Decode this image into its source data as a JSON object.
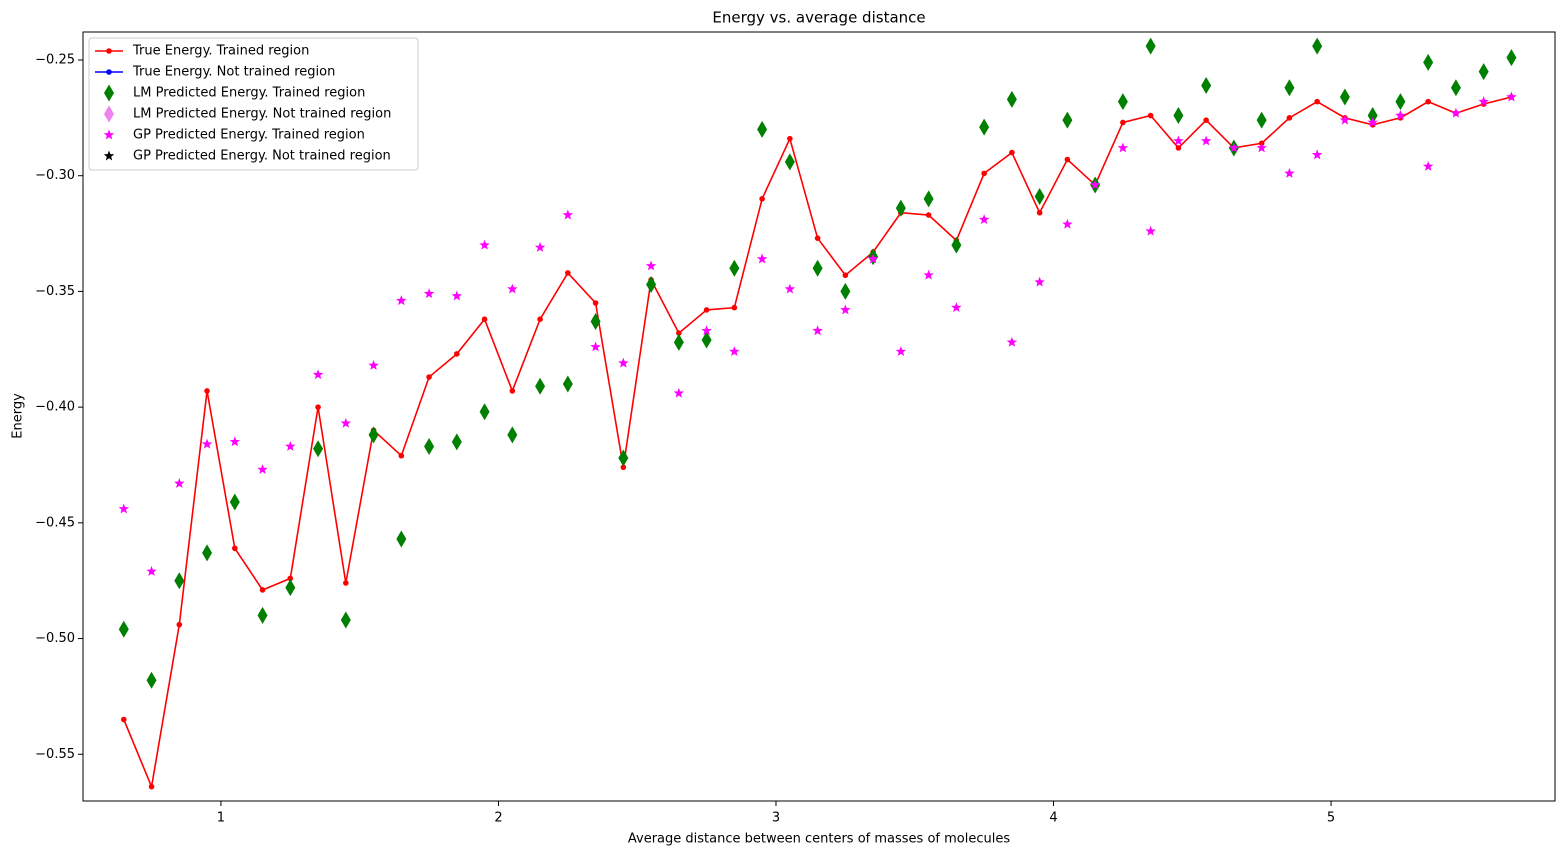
{
  "chart_data": {
    "type": "line-scatter",
    "title": "Energy vs. average distance",
    "x_label": "Average distance between centers of masses of molecules",
    "y_label": "Energy",
    "xlim": [
      0.503,
      5.807
    ],
    "ylim": [
      -0.5702,
      -0.2379
    ],
    "xticks": [
      1,
      2,
      3,
      4,
      5
    ],
    "yticks": [
      {
        "value": -0.55,
        "label": "−0.55"
      },
      {
        "value": -0.5,
        "label": "−0.50"
      },
      {
        "value": -0.45,
        "label": "−0.45"
      },
      {
        "value": -0.4,
        "label": "−0.40"
      },
      {
        "value": -0.35,
        "label": "−0.35"
      },
      {
        "value": -0.3,
        "label": "−0.30"
      },
      {
        "value": -0.25,
        "label": "−0.25"
      }
    ],
    "legend": "upper left",
    "x": [
      0.65,
      0.75,
      0.85,
      0.95,
      1.05,
      1.15,
      1.25,
      1.35,
      1.45,
      1.55,
      1.65,
      1.75,
      1.85,
      1.95,
      2.05,
      2.15,
      2.25,
      2.35,
      2.45,
      2.55,
      2.65,
      2.75,
      2.85,
      2.95,
      3.05,
      3.15,
      3.25,
      3.35,
      3.45,
      3.55,
      3.65,
      3.75,
      3.85,
      3.95,
      4.05,
      4.15,
      4.25,
      4.35,
      4.45,
      4.55,
      4.65,
      4.75,
      4.85,
      4.95,
      5.05,
      5.15,
      5.25,
      5.35,
      5.45,
      5.55,
      5.65
    ],
    "series": [
      {
        "name": "True Energy. Trained region",
        "color": "#ff0000",
        "marker": "line-dot",
        "values": [
          -0.535,
          -0.564,
          -0.494,
          -0.393,
          -0.461,
          -0.479,
          -0.474,
          -0.4,
          -0.476,
          -0.41,
          -0.421,
          -0.387,
          -0.377,
          -0.362,
          -0.393,
          -0.362,
          -0.342,
          -0.355,
          -0.426,
          -0.345,
          -0.368,
          -0.358,
          -0.357,
          -0.31,
          -0.284,
          -0.327,
          -0.343,
          -0.333,
          -0.316,
          -0.317,
          -0.328,
          -0.299,
          -0.29,
          -0.316,
          -0.293,
          -0.304,
          -0.277,
          -0.274,
          -0.288,
          -0.276,
          -0.288,
          -0.286,
          -0.275,
          -0.268,
          -0.275,
          -0.278,
          -0.275,
          -0.268,
          -0.273,
          -0.269,
          -0.266
        ]
      },
      {
        "name": "True Energy. Not trained region",
        "color": "#0000ff",
        "marker": "line-dot",
        "x": [],
        "values": []
      },
      {
        "name": "LM Predicted Energy. Trained region",
        "color": "#008000",
        "marker": "diamond",
        "values": [
          -0.496,
          -0.518,
          -0.475,
          -0.463,
          -0.441,
          -0.49,
          -0.478,
          -0.418,
          -0.492,
          -0.412,
          -0.457,
          -0.417,
          -0.415,
          -0.402,
          -0.412,
          -0.391,
          -0.39,
          -0.363,
          -0.422,
          -0.347,
          -0.372,
          -0.371,
          -0.34,
          -0.28,
          -0.294,
          -0.34,
          -0.35,
          -0.335,
          -0.314,
          -0.31,
          -0.33,
          -0.279,
          -0.267,
          -0.309,
          -0.276,
          -0.304,
          -0.268,
          -0.244,
          -0.274,
          -0.261,
          -0.288,
          -0.276,
          -0.262,
          -0.244,
          -0.266,
          -0.274,
          -0.268,
          -0.251,
          -0.262,
          -0.255,
          -0.249
        ]
      },
      {
        "name": "LM Predicted Energy. Not trained region",
        "color": "#ee82ee",
        "marker": "diamond",
        "x": [],
        "values": []
      },
      {
        "name": "GP Predicted Energy. Trained region",
        "color": "#ff00ff",
        "marker": "star",
        "values": [
          -0.444,
          -0.471,
          -0.433,
          -0.416,
          -0.415,
          -0.427,
          -0.417,
          -0.386,
          -0.407,
          -0.382,
          -0.354,
          -0.351,
          -0.352,
          -0.33,
          -0.349,
          -0.331,
          -0.317,
          -0.374,
          -0.381,
          -0.339,
          -0.394,
          -0.367,
          -0.376,
          -0.336,
          -0.349,
          -0.367,
          -0.358,
          -0.336,
          -0.376,
          -0.343,
          -0.357,
          -0.319,
          -0.372,
          -0.346,
          -0.321,
          -0.304,
          -0.288,
          -0.324,
          -0.285,
          -0.285,
          -0.288,
          -0.288,
          -0.299,
          -0.291,
          -0.276,
          -0.277,
          -0.274,
          -0.296,
          -0.273,
          -0.268,
          -0.266
        ]
      },
      {
        "name": "GP Predicted Energy. Not trained region",
        "color": "#000000",
        "marker": "star",
        "x": [],
        "values": []
      }
    ]
  }
}
